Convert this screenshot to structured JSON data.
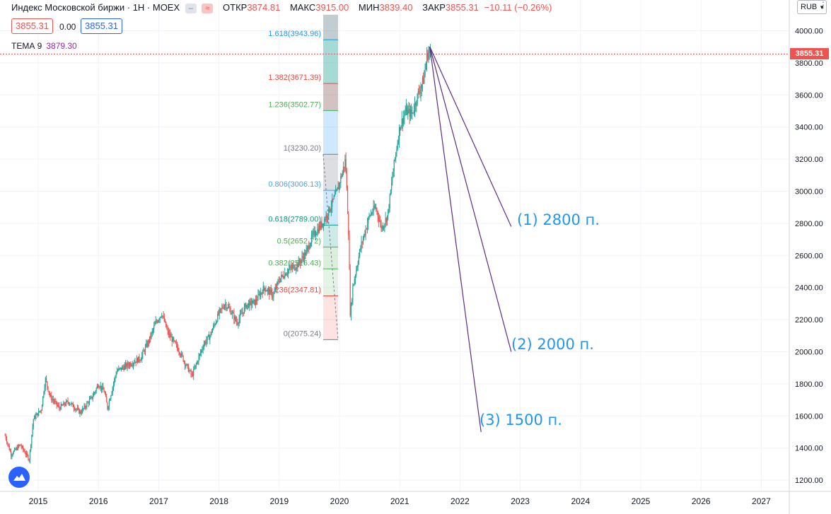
{
  "header": {
    "title": "Индекс Московской биржи · 1Н · MOEX",
    "open_label": "ОТКР",
    "open": "3874.81",
    "high_label": "МАКС",
    "high": "3915.00",
    "low_label": "МИН",
    "low": "3839.40",
    "close_label": "ЗАКР",
    "close": "3855.31",
    "change": "−10.11 (−0.26%)",
    "bid": "3855.31",
    "spread": "0.00",
    "ask": "3855.31"
  },
  "indicator": {
    "name": "ТЕМА 9",
    "value": "3879.30"
  },
  "currency": "RUB",
  "current_price_label": "3855.31",
  "colors": {
    "up": "#26a69a",
    "down": "#ef5350",
    "projection": "#5b2c83",
    "annotation": "#2196f3"
  },
  "chart_data": {
    "type": "candlestick",
    "x_ticks": [
      "2015",
      "2016",
      "2017",
      "2018",
      "2019",
      "2020",
      "2021",
      "2022",
      "2023",
      "2024",
      "2025",
      "2026",
      "2027"
    ],
    "y_ticks": [
      "1200.00",
      "1400.00",
      "1600.00",
      "1800.00",
      "2000.00",
      "2200.00",
      "2400.00",
      "2600.00",
      "2800.00",
      "3000.00",
      "3200.00",
      "3400.00",
      "3600.00",
      "3800.00",
      "4000.00"
    ],
    "ylim": [
      1150,
      4100
    ],
    "price_path": [
      [
        2014.45,
        1480
      ],
      [
        2014.55,
        1360
      ],
      [
        2014.7,
        1420
      ],
      [
        2014.85,
        1330
      ],
      [
        2014.92,
        1580
      ],
      [
        2015.05,
        1640
      ],
      [
        2015.12,
        1830
      ],
      [
        2015.2,
        1720
      ],
      [
        2015.35,
        1650
      ],
      [
        2015.5,
        1690
      ],
      [
        2015.7,
        1620
      ],
      [
        2015.9,
        1720
      ],
      [
        2016.0,
        1800
      ],
      [
        2016.1,
        1750
      ],
      [
        2016.15,
        1650
      ],
      [
        2016.3,
        1880
      ],
      [
        2016.5,
        1920
      ],
      [
        2016.7,
        1960
      ],
      [
        2016.85,
        2080
      ],
      [
        2016.95,
        2180
      ],
      [
        2017.05,
        2240
      ],
      [
        2017.15,
        2120
      ],
      [
        2017.25,
        2060
      ],
      [
        2017.35,
        2000
      ],
      [
        2017.45,
        1920
      ],
      [
        2017.55,
        1850
      ],
      [
        2017.65,
        1950
      ],
      [
        2017.75,
        2050
      ],
      [
        2017.85,
        2100
      ],
      [
        2018.0,
        2240
      ],
      [
        2018.1,
        2300
      ],
      [
        2018.2,
        2250
      ],
      [
        2018.3,
        2180
      ],
      [
        2018.45,
        2290
      ],
      [
        2018.6,
        2310
      ],
      [
        2018.75,
        2400
      ],
      [
        2018.9,
        2350
      ],
      [
        2019.0,
        2450
      ],
      [
        2019.15,
        2510
      ],
      [
        2019.3,
        2540
      ],
      [
        2019.45,
        2620
      ],
      [
        2019.55,
        2720
      ],
      [
        2019.7,
        2790
      ],
      [
        2019.8,
        2860
      ],
      [
        2019.95,
        2990
      ],
      [
        2020.05,
        3120
      ],
      [
        2020.1,
        3200
      ],
      [
        2020.15,
        2750
      ],
      [
        2020.18,
        2220
      ],
      [
        2020.22,
        2400
      ],
      [
        2020.35,
        2650
      ],
      [
        2020.5,
        2850
      ],
      [
        2020.6,
        2900
      ],
      [
        2020.7,
        2770
      ],
      [
        2020.8,
        2850
      ],
      [
        2020.85,
        3000
      ],
      [
        2020.9,
        3150
      ],
      [
        2021.0,
        3400
      ],
      [
        2021.1,
        3500
      ],
      [
        2021.2,
        3480
      ],
      [
        2021.3,
        3600
      ],
      [
        2021.4,
        3700
      ],
      [
        2021.45,
        3840
      ],
      [
        2021.5,
        3880
      ],
      [
        2021.52,
        3855
      ]
    ],
    "fib": {
      "levels": [
        {
          "label": "1.618(3943.96)",
          "value": 3943.96,
          "color": "#2196f3"
        },
        {
          "label": "1.382(3671.39)",
          "value": 3671.39,
          "color": "#f44336"
        },
        {
          "label": "1.236(3502.77)",
          "value": 3502.77,
          "color": "#4caf50"
        },
        {
          "label": "1(3230.20)",
          "value": 3230.2,
          "color": "#787b86"
        },
        {
          "label": "0.806(3006.13)",
          "value": 3006.13,
          "color": "#42a5f5"
        },
        {
          "label": "0.618(2789.00)",
          "value": 2789.0,
          "color": "#089981"
        },
        {
          "label": "0.5(2652.72)",
          "value": 2652.72,
          "color": "#4caf50"
        },
        {
          "label": "0.382(2516.43)",
          "value": 2516.43,
          "color": "#4caf50"
        },
        {
          "label": "0.236(2347.81)",
          "value": 2347.81,
          "color": "#f44336"
        },
        {
          "label": "0(2075.24)",
          "value": 2075.24,
          "color": "#787b86"
        }
      ],
      "top_band": 4100
    },
    "projections": [
      {
        "label": "(1) 2800 п.",
        "from": [
          2021.5,
          3900
        ],
        "to": [
          2022.85,
          2780
        ]
      },
      {
        "label": "(2) 2000 п.",
        "from": [
          2021.5,
          3900
        ],
        "to": [
          2022.85,
          2000
        ]
      },
      {
        "label": "(3) 1500 п.",
        "from": [
          2021.5,
          3900
        ],
        "to": [
          2022.35,
          1500
        ]
      }
    ]
  }
}
